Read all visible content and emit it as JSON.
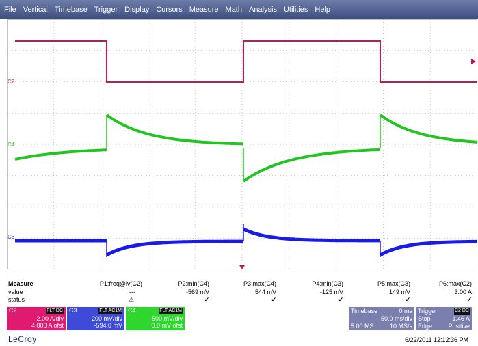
{
  "menu": [
    "File",
    "Vertical",
    "Timebase",
    "Trigger",
    "Display",
    "Cursors",
    "Measure",
    "Math",
    "Analysis",
    "Utilities",
    "Help"
  ],
  "trace_labels": {
    "c2": "C2",
    "c4": "C4",
    "c3": "C3"
  },
  "colors": {
    "c2": "#c2185b",
    "c3": "#1a1ae6",
    "c4": "#22c422",
    "grid": "#9a9a9a",
    "menubar": "#4d5d8e",
    "info": "#7a7fae"
  },
  "measure": {
    "title": "Measure",
    "row_labels": {
      "value": "value",
      "status": "status"
    },
    "params": [
      {
        "name": "P1:freq@lv(C2)",
        "value": "---",
        "status": "warning-icon"
      },
      {
        "name": "P2:min(C4)",
        "value": "-569 mV",
        "status": "check-icon"
      },
      {
        "name": "P3:max(C4)",
        "value": "544 mV",
        "status": "check-icon"
      },
      {
        "name": "P4:min(C3)",
        "value": "-125 mV",
        "status": "check-icon"
      },
      {
        "name": "P5:max(C3)",
        "value": "149 mV",
        "status": "check-icon"
      },
      {
        "name": "P6:max(C2)",
        "value": "3.00 A",
        "status": "check-icon"
      }
    ]
  },
  "channels": {
    "c2": {
      "name": "C2",
      "badge": "FLT DC",
      "scale": "2.00 A/div",
      "offset": "4.000 A ofst"
    },
    "c3": {
      "name": "C3",
      "badge": "FLT AC1M",
      "scale": "200 mV/div",
      "offset": "-594.0 mV"
    },
    "c4": {
      "name": "C4",
      "badge": "FLT AC1M",
      "scale": "500 mV/div",
      "offset": "0.0 mV ofst"
    }
  },
  "timebase": {
    "label": "Timebase",
    "delay": "0 ms",
    "scale": "50.0 ms/div",
    "samples": "5.00 MS",
    "rate": "10 MS/s"
  },
  "trigger": {
    "label": "Trigger",
    "source": "C2 DC",
    "mode": "Stop",
    "level": "1.46 A",
    "type": "Edge",
    "slope": "Positive"
  },
  "brand": "LeCroy",
  "timestamp": "6/22/2011 12:12:36 PM"
}
